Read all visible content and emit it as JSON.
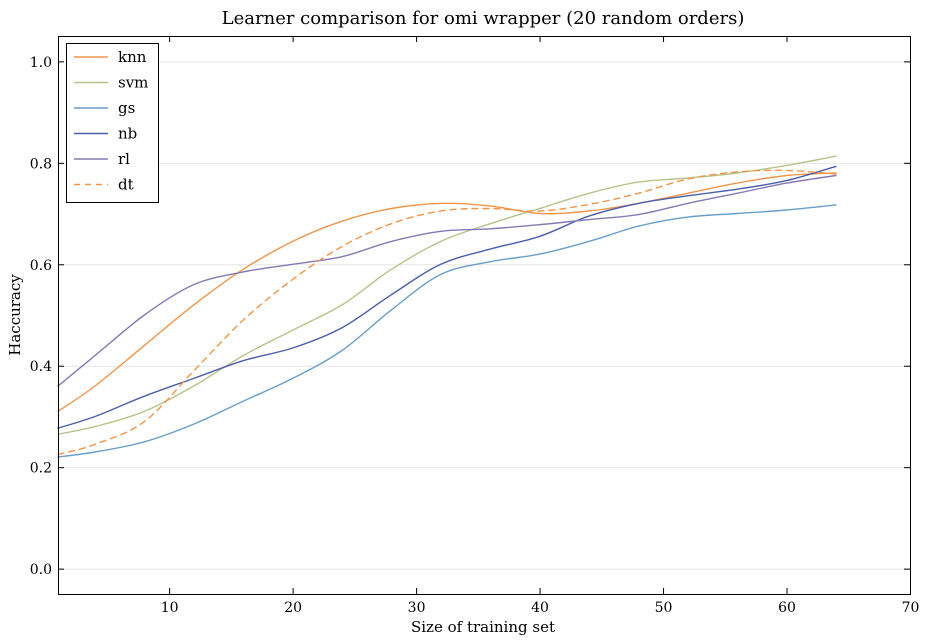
{
  "chart_data": {
    "type": "line",
    "title": "Learner comparison for omi wrapper (20 random orders)",
    "xlabel": "Size of training set",
    "ylabel": "Haccuracy",
    "xlim": [
      1,
      70
    ],
    "ylim": [
      -0.05,
      1.05
    ],
    "xticks": [
      10,
      20,
      30,
      40,
      50,
      60,
      70
    ],
    "yticks": [
      0.0,
      0.2,
      0.4,
      0.6,
      0.8,
      1.0
    ],
    "xtick_labels": [
      "10",
      "20",
      "30",
      "40",
      "50",
      "60",
      "70"
    ],
    "ytick_labels": [
      "0.0",
      "0.2",
      "0.4",
      "0.6",
      "0.8",
      "1.0"
    ],
    "grid": true,
    "legend_position": "top-left",
    "x": [
      1,
      4,
      8,
      12,
      16,
      20,
      24,
      28,
      32,
      36,
      40,
      44,
      48,
      52,
      56,
      60,
      64
    ],
    "series": [
      {
        "name": "knn",
        "color": "#f0954a",
        "dash": "solid",
        "values": [
          0.31,
          0.36,
          0.44,
          0.52,
          0.59,
          0.645,
          0.685,
          0.71,
          0.72,
          0.715,
          0.7,
          0.705,
          0.72,
          0.74,
          0.76,
          0.775,
          0.78
        ]
      },
      {
        "name": "svm",
        "color": "#b4c48a",
        "dash": "solid",
        "values": [
          0.265,
          0.28,
          0.31,
          0.36,
          0.42,
          0.47,
          0.52,
          0.59,
          0.645,
          0.68,
          0.71,
          0.74,
          0.762,
          0.77,
          0.78,
          0.795,
          0.813
        ]
      },
      {
        "name": "gs",
        "color": "#6a9ec9",
        "dash": "solid",
        "values": [
          0.22,
          0.23,
          0.25,
          0.285,
          0.33,
          0.375,
          0.43,
          0.51,
          0.58,
          0.605,
          0.62,
          0.645,
          0.675,
          0.693,
          0.7,
          0.707,
          0.717
        ]
      },
      {
        "name": "nb",
        "color": "#4a60aa",
        "dash": "solid",
        "values": [
          0.277,
          0.3,
          0.34,
          0.375,
          0.41,
          0.435,
          0.475,
          0.54,
          0.6,
          0.63,
          0.655,
          0.695,
          0.72,
          0.735,
          0.748,
          0.765,
          0.793
        ]
      },
      {
        "name": "rl",
        "color": "#8579b4",
        "dash": "solid",
        "values": [
          0.36,
          0.42,
          0.5,
          0.56,
          0.585,
          0.6,
          0.615,
          0.645,
          0.665,
          0.67,
          0.678,
          0.688,
          0.698,
          0.72,
          0.74,
          0.76,
          0.775
        ]
      },
      {
        "name": "dt",
        "color": "#f0954a",
        "dash": "dashed",
        "values": [
          0.225,
          0.245,
          0.29,
          0.39,
          0.49,
          0.57,
          0.635,
          0.68,
          0.705,
          0.71,
          0.705,
          0.718,
          0.74,
          0.768,
          0.782,
          0.785,
          0.778
        ]
      }
    ]
  }
}
